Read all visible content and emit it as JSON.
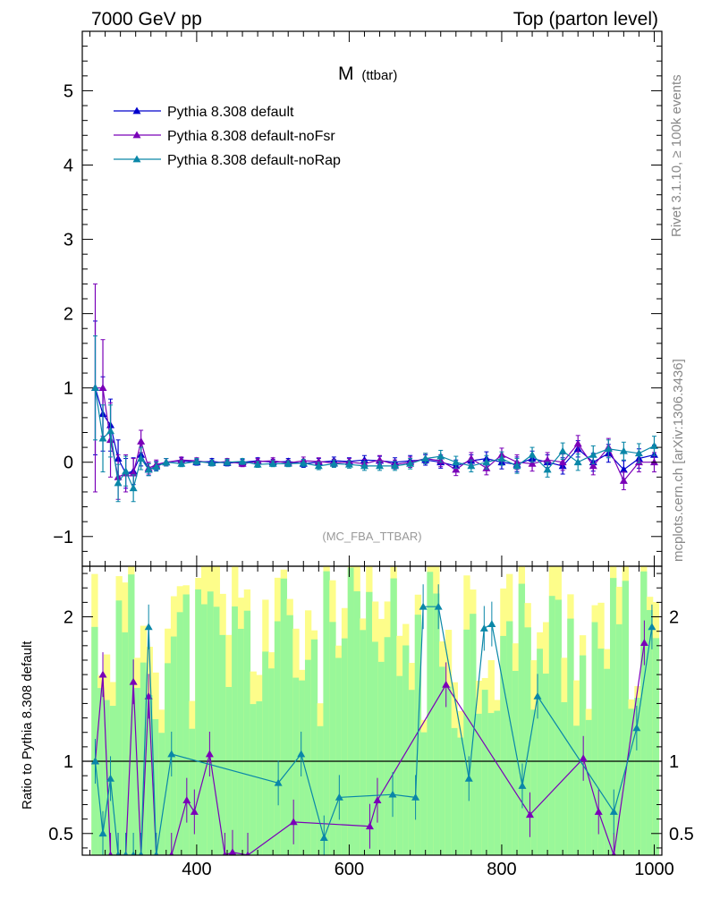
{
  "header": {
    "left": "7000 GeV pp",
    "right": "Top (parton level)"
  },
  "side_labels": {
    "rivet": "Rivet 3.1.10, ≥ 100k events",
    "mcplots": "mcplots.cern.ch [arXiv:1306.3436]"
  },
  "colors": {
    "default": "#0000cc",
    "noFsr": "#7a00b8",
    "noRap": "#0a87a8",
    "band_green": "#99f799",
    "band_yellow": "#fdfd8a"
  },
  "chart_data": [
    {
      "type": "line",
      "title": "M",
      "title_sub": "(ttbar)",
      "analysis": "(MC_FBA_TTBAR)",
      "legend": {
        "placement": "top-left",
        "entries": [
          "Pythia 8.308 default",
          "Pythia 8.308 default-noFsr",
          "Pythia 8.308 default-noRap"
        ]
      },
      "xlim": [
        250,
        1010
      ],
      "ylim": [
        -1.4,
        5.8
      ],
      "yticks": [
        -1,
        0,
        1,
        2,
        3,
        4,
        5
      ],
      "ytick_labels": [
        "−1",
        "0",
        "1",
        "2",
        "3",
        "4",
        "5"
      ],
      "series": [
        {
          "name": "Pythia 8.308 default",
          "x": [
            267,
            277,
            287,
            297,
            307,
            317,
            327,
            337,
            347,
            360,
            380,
            400,
            420,
            440,
            460,
            480,
            500,
            520,
            540,
            560,
            580,
            600,
            620,
            640,
            660,
            680,
            700,
            720,
            740,
            760,
            780,
            800,
            820,
            840,
            860,
            880,
            900,
            920,
            940,
            960,
            980,
            1000
          ],
          "y": [
            1.0,
            0.65,
            0.5,
            0.05,
            -0.15,
            -0.12,
            0.1,
            -0.1,
            -0.05,
            0.0,
            0.02,
            0.0,
            0.01,
            -0.01,
            0.0,
            0.02,
            0.0,
            0.01,
            -0.02,
            0.0,
            0.02,
            0.01,
            0.03,
            0.02,
            0.0,
            0.02,
            0.03,
            0.0,
            -0.05,
            0.02,
            0.05,
            0.0,
            -0.03,
            0.05,
            0.0,
            -0.05,
            0.18,
            0.0,
            0.12,
            -0.1,
            0.05,
            0.1
          ],
          "err": [
            0.9,
            0.5,
            0.35,
            0.25,
            0.2,
            0.18,
            0.15,
            0.08,
            0.06,
            0.05,
            0.04,
            0.04,
            0.04,
            0.04,
            0.04,
            0.04,
            0.04,
            0.04,
            0.05,
            0.05,
            0.05,
            0.05,
            0.06,
            0.06,
            0.06,
            0.07,
            0.07,
            0.08,
            0.08,
            0.08,
            0.09,
            0.09,
            0.1,
            0.1,
            0.1,
            0.11,
            0.11,
            0.12,
            0.12,
            0.12,
            0.13,
            0.13
          ]
        },
        {
          "name": "Pythia 8.308 default-noFsr",
          "x": [
            267,
            277,
            287,
            297,
            307,
            317,
            327,
            337,
            347,
            360,
            380,
            400,
            420,
            440,
            460,
            480,
            500,
            520,
            540,
            560,
            580,
            600,
            620,
            640,
            660,
            680,
            700,
            720,
            740,
            760,
            780,
            800,
            820,
            840,
            860,
            880,
            900,
            920,
            940,
            960,
            980,
            1000
          ],
          "y": [
            1.0,
            1.0,
            0.3,
            -0.2,
            -0.15,
            -0.15,
            0.28,
            -0.08,
            -0.03,
            0.0,
            0.03,
            0.02,
            -0.01,
            0.01,
            -0.02,
            0.01,
            0.02,
            -0.01,
            0.02,
            0.01,
            -0.01,
            0.0,
            -0.02,
            0.03,
            -0.03,
            0.0,
            0.05,
            0.02,
            -0.1,
            0.05,
            -0.08,
            0.1,
            0.0,
            -0.02,
            0.03,
            0.0,
            0.25,
            -0.05,
            0.2,
            -0.25,
            0.0,
            0.0
          ],
          "err": [
            1.4,
            0.65,
            0.5,
            0.3,
            0.25,
            0.2,
            0.15,
            0.08,
            0.06,
            0.05,
            0.04,
            0.04,
            0.04,
            0.04,
            0.04,
            0.04,
            0.04,
            0.04,
            0.05,
            0.05,
            0.05,
            0.05,
            0.06,
            0.06,
            0.06,
            0.07,
            0.07,
            0.08,
            0.08,
            0.08,
            0.09,
            0.09,
            0.1,
            0.1,
            0.1,
            0.11,
            0.11,
            0.12,
            0.12,
            0.12,
            0.13,
            0.13
          ]
        },
        {
          "name": "Pythia 8.308 default-noRap",
          "x": [
            267,
            277,
            287,
            297,
            307,
            317,
            327,
            337,
            347,
            360,
            380,
            400,
            420,
            440,
            460,
            480,
            500,
            520,
            540,
            560,
            580,
            600,
            620,
            640,
            660,
            680,
            700,
            720,
            740,
            760,
            780,
            800,
            820,
            840,
            860,
            880,
            900,
            920,
            940,
            960,
            980,
            1000
          ],
          "y": [
            1.0,
            0.32,
            0.42,
            -0.28,
            -0.12,
            -0.35,
            0.05,
            -0.1,
            -0.06,
            0.0,
            -0.02,
            0.01,
            -0.01,
            0.0,
            0.01,
            -0.03,
            -0.02,
            -0.02,
            -0.01,
            -0.05,
            -0.02,
            -0.03,
            -0.05,
            -0.05,
            -0.05,
            -0.02,
            0.05,
            0.08,
            0.0,
            -0.05,
            0.0,
            0.05,
            -0.05,
            0.1,
            -0.1,
            0.15,
            0.0,
            0.1,
            0.18,
            0.15,
            0.12,
            0.22
          ],
          "err": [
            0.7,
            0.45,
            0.35,
            0.25,
            0.2,
            0.18,
            0.15,
            0.08,
            0.06,
            0.05,
            0.04,
            0.04,
            0.04,
            0.04,
            0.04,
            0.04,
            0.04,
            0.04,
            0.05,
            0.05,
            0.05,
            0.05,
            0.06,
            0.06,
            0.06,
            0.07,
            0.07,
            0.08,
            0.08,
            0.08,
            0.09,
            0.09,
            0.1,
            0.1,
            0.1,
            0.11,
            0.11,
            0.12,
            0.12,
            0.12,
            0.13,
            0.13
          ]
        }
      ]
    },
    {
      "type": "line",
      "ylabel": "Ratio to Pythia 8.308 default",
      "xlim": [
        250,
        1010
      ],
      "ylim": [
        0.35,
        2.35
      ],
      "xticks": [
        400,
        600,
        800,
        1000
      ],
      "yticks": [
        0.5,
        1,
        2
      ],
      "ytick_labels": [
        "0.5",
        "1",
        "2"
      ],
      "reference": 1,
      "series": [
        {
          "name": "Pythia 8.308 default-noFsr",
          "x": [
            267,
            277,
            287,
            297,
            307,
            317,
            327,
            337,
            347,
            367,
            387,
            397,
            417,
            437,
            447,
            467,
            527,
            627,
            637,
            727,
            837,
            907,
            927,
            947,
            987
          ],
          "y": [
            1.0,
            1.6,
            0.35,
            0.35,
            0.35,
            1.55,
            0.35,
            1.45,
            0.35,
            0.35,
            0.73,
            0.65,
            1.05,
            0.35,
            0.37,
            0.35,
            0.58,
            0.55,
            0.73,
            1.53,
            0.63,
            1.02,
            0.65,
            0.35,
            1.82
          ]
        },
        {
          "name": "Pythia 8.308 default-noRap",
          "x": [
            267,
            277,
            287,
            297,
            307,
            317,
            327,
            337,
            347,
            367,
            507,
            537,
            567,
            587,
            657,
            687,
            697,
            717,
            757,
            777,
            787,
            827,
            847,
            947,
            977,
            997
          ],
          "y": [
            1.0,
            0.5,
            0.88,
            0.35,
            0.35,
            0.35,
            0.35,
            1.93,
            0.35,
            1.05,
            0.85,
            1.05,
            0.47,
            0.75,
            0.77,
            0.75,
            2.07,
            2.07,
            0.88,
            1.92,
            1.95,
            0.83,
            1.45,
            0.65,
            1.23,
            1.93
          ]
        }
      ]
    }
  ]
}
